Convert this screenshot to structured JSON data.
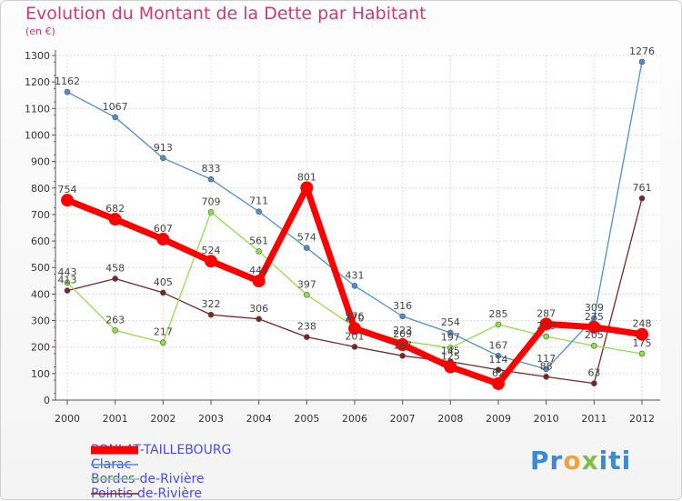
{
  "chart_data": {
    "type": "line",
    "title": "Evolution du Montant de la Dette par Habitant",
    "subtitle": "(en €)",
    "xlabel": "",
    "ylabel": "",
    "x": [
      "2000",
      "2001",
      "2002",
      "2003",
      "2004",
      "2005",
      "2006",
      "2007",
      "2008",
      "2009",
      "2010",
      "2011",
      "2012"
    ],
    "ylim": [
      0,
      1300
    ],
    "yticks": [
      0,
      100,
      200,
      300,
      400,
      500,
      600,
      700,
      800,
      900,
      1000,
      1100,
      1200,
      1300
    ],
    "grid": true,
    "legend_position": "bottom-left",
    "series": [
      {
        "name": "PONLAT-TAILLEBOURG",
        "color": "#ff0000",
        "values": [
          754,
          682,
          607,
          524,
          449,
          801,
          270,
          209,
          125,
          62,
          287,
          275,
          248
        ],
        "labels": [
          "754",
          "682",
          "607",
          "524",
          "449",
          "801",
          "270",
          "209",
          "125",
          "62",
          "287",
          "275",
          "248"
        ]
      },
      {
        "name": "Clarac",
        "color": "#4d8fd0",
        "values": [
          1162,
          1067,
          913,
          833,
          711,
          574,
          431,
          316,
          254,
          167,
          117,
          309,
          1276
        ],
        "labels": [
          "1162",
          "1067",
          "913",
          "833",
          "711",
          "574",
          "431",
          "316",
          "254",
          "167",
          "117",
          "309",
          "1276"
        ]
      },
      {
        "name": "Bordes-de-Rivière",
        "color": "#8ee045",
        "values": [
          443,
          263,
          217,
          709,
          561,
          397,
          276,
          223,
          197,
          285,
          240,
          205,
          175
        ],
        "labels": [
          "443",
          "263",
          "217",
          "709",
          "561",
          "397",
          "276",
          "223",
          "197",
          "285",
          "240",
          "205",
          "175"
        ]
      },
      {
        "name": "Pointis-de-Rivière",
        "color": "#7a2525",
        "values": [
          413,
          458,
          405,
          322,
          306,
          238,
          201,
          167,
          145,
          114,
          88,
          63,
          761
        ],
        "labels": [
          "413",
          "458",
          "405",
          "322",
          "306",
          "238",
          "201",
          "167",
          "145",
          "114",
          "88",
          "63",
          "761"
        ]
      }
    ]
  },
  "logo": {
    "p1": "Pr",
    "o": "o",
    "x": "x",
    "i": "i",
    "t": "t",
    "i2": "i"
  }
}
